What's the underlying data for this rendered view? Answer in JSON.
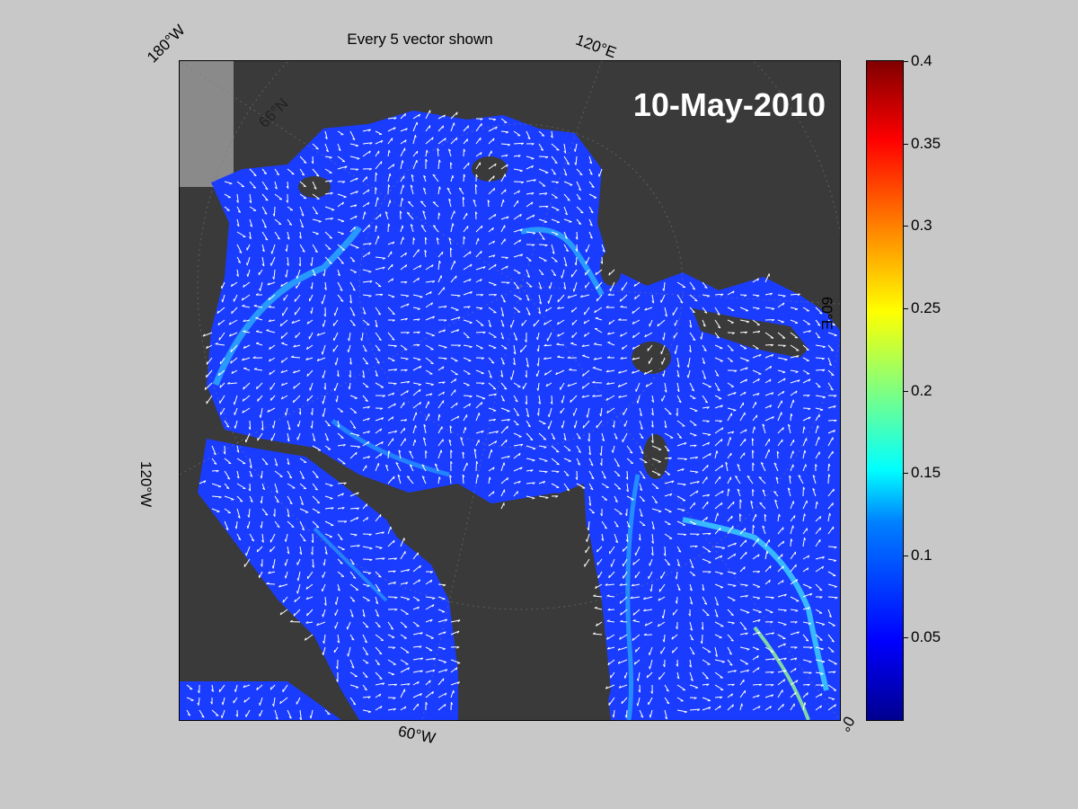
{
  "title": "Every 5 vector shown",
  "date": "10-May-2010",
  "map_labels": {
    "lon_180w": "180°W",
    "lon_120e": "120°E",
    "lon_60e": "60°E",
    "lon_0": "0°",
    "lon_60w": "60°W",
    "lon_120w": "120°W",
    "lat_66n": "66°N"
  },
  "colorbar": {
    "min": 0,
    "max": 0.4,
    "ticks": [
      "0.4",
      "0.35",
      "0.3",
      "0.25",
      "0.2",
      "0.15",
      "0.1",
      "0.05"
    ],
    "tick_values": [
      0.4,
      0.35,
      0.3,
      0.25,
      0.2,
      0.15,
      0.1,
      0.05
    ],
    "colormap": "jet"
  },
  "colors": {
    "background": "#c8c8c8",
    "land": "#3c3c3c",
    "ocean_low": "#0a2cff",
    "vector": "#ffffff"
  }
}
